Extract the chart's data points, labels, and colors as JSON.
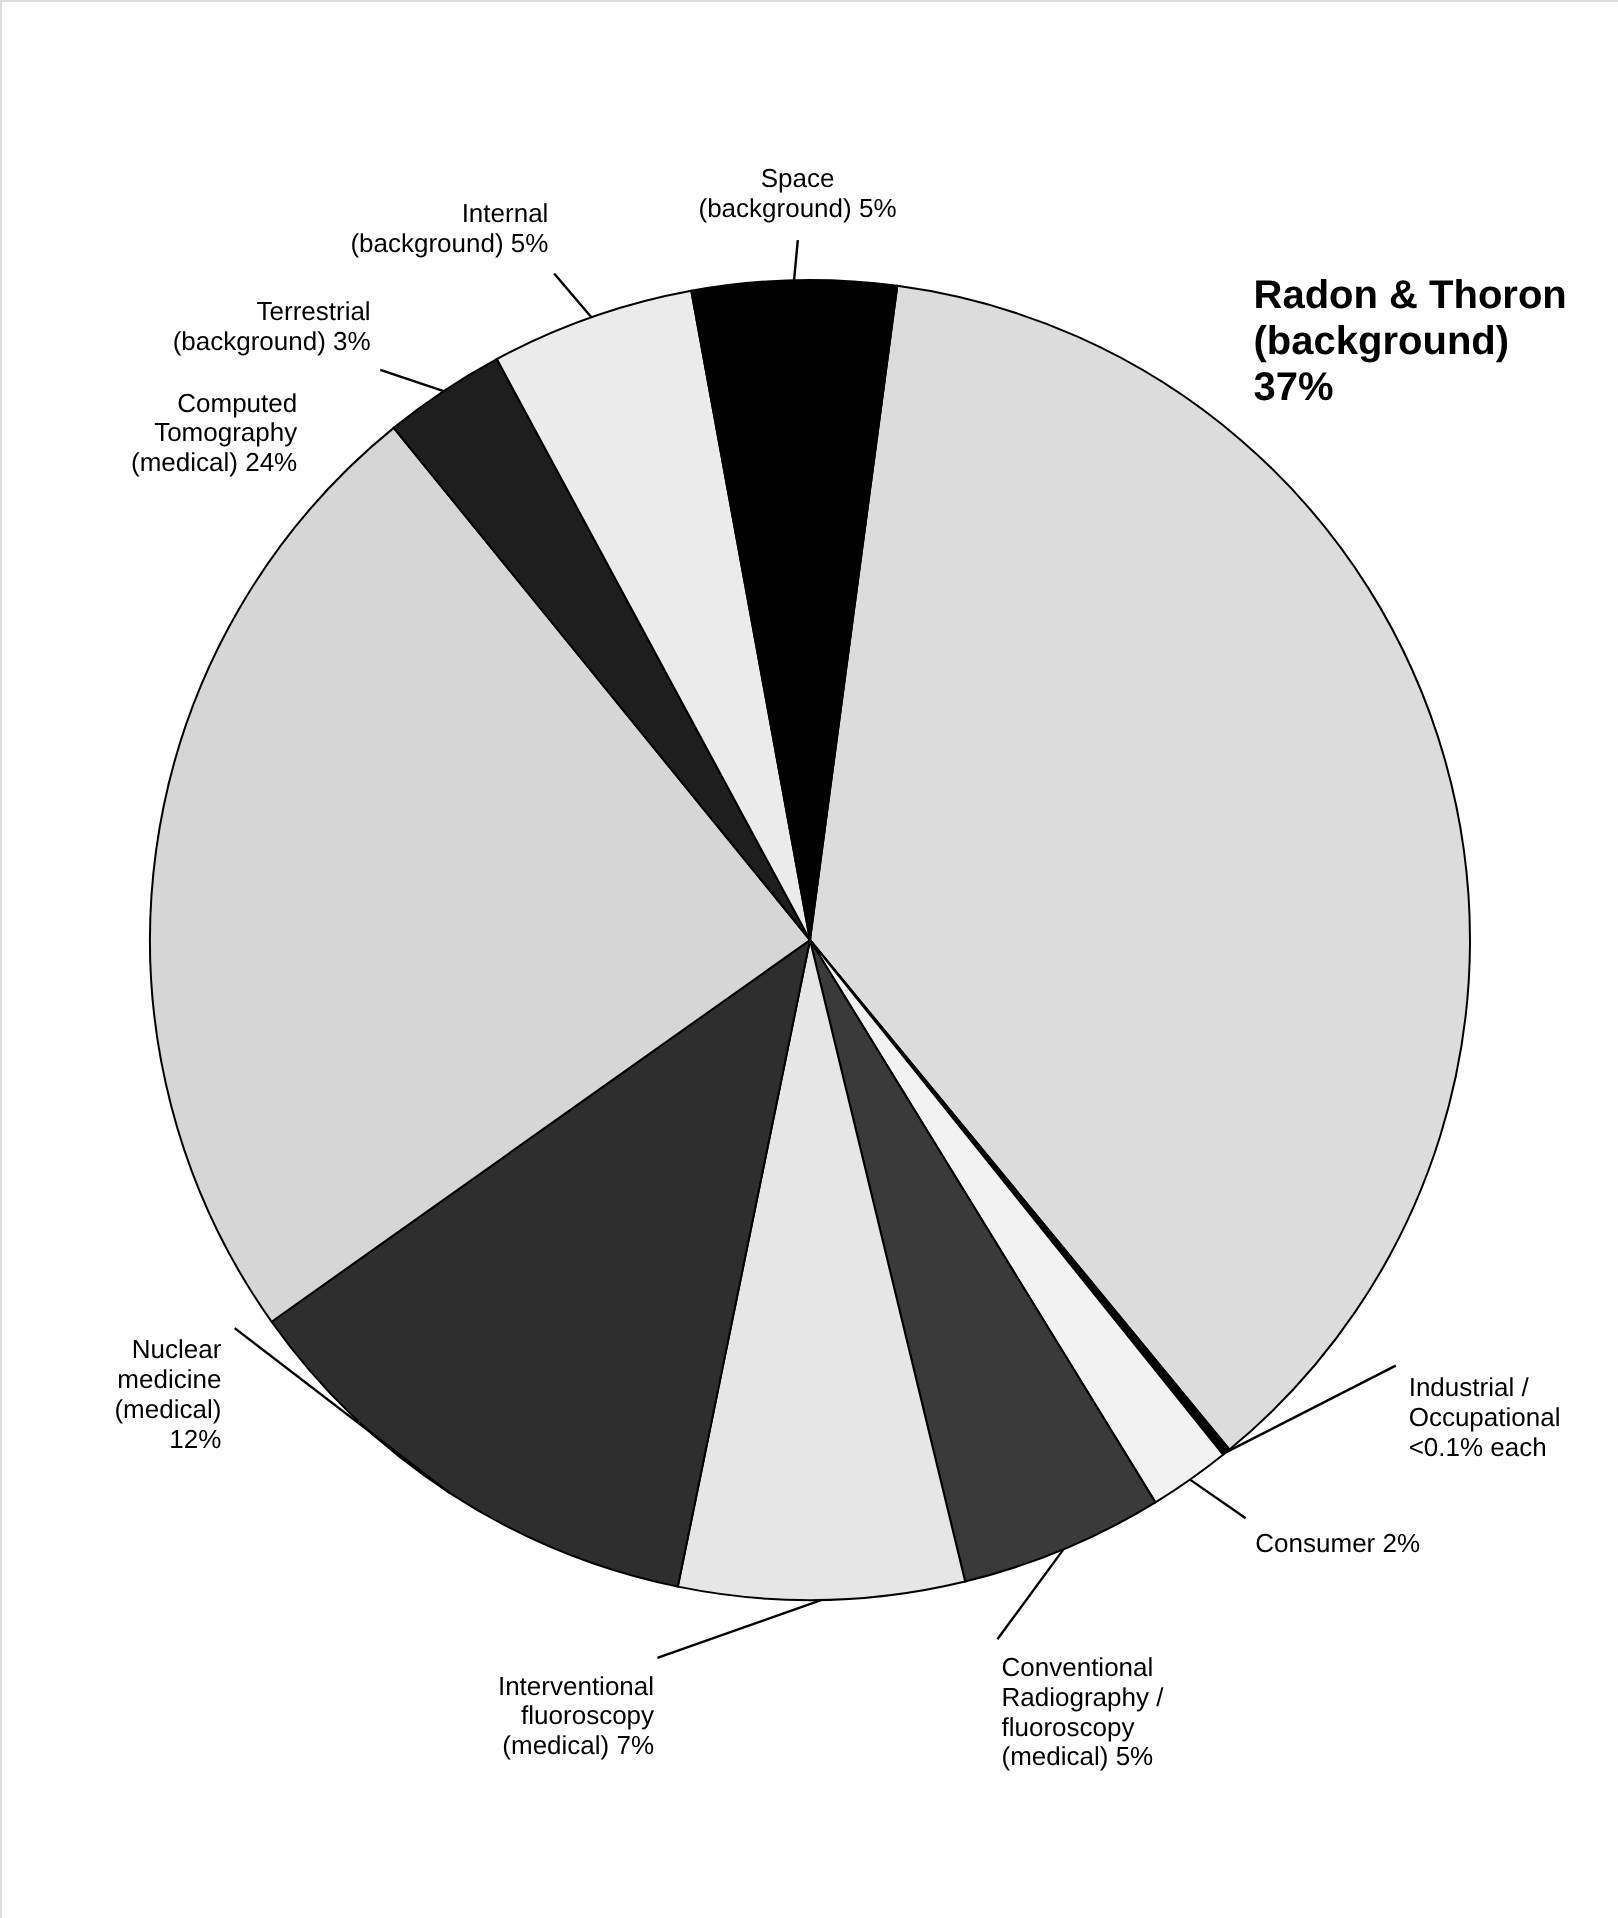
{
  "chart_data": {
    "type": "pie",
    "categories": [
      "Radon & Thoron (background)",
      "Industrial / Occupational",
      "Consumer",
      "Conventional Radiography / fluoroscopy (medical)",
      "Interventional fluoroscopy (medical)",
      "Nuclear medicine (medical)",
      "Computed Tomography (medical)",
      "Terrestrial (background)",
      "Internal (background)",
      "Space (background)"
    ],
    "values": [
      37,
      0.2,
      2,
      5,
      7,
      12,
      24,
      3,
      5,
      5
    ],
    "value_labels": [
      "37%",
      "<0.1% each",
      "2%",
      "5%",
      "7%",
      "12%",
      "24%",
      "3%",
      "5%",
      "5%"
    ],
    "colors": [
      "#dcdcdc",
      "#000000",
      "#f2f2f2",
      "#3a3a3a",
      "#e6e6e6",
      "#2e2e2e",
      "#d6d6d6",
      "#1e1e1e",
      "#ebebeb",
      "#000000"
    ]
  }
}
